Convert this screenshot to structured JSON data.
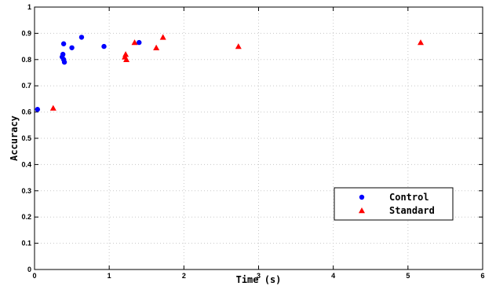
{
  "chart_data": {
    "type": "scatter",
    "title": "",
    "xlabel": "Time (s)",
    "ylabel": "Accuracy",
    "xlim": [
      0,
      6
    ],
    "ylim": [
      0,
      1
    ],
    "xticks": [
      "0",
      "1",
      "2",
      "3",
      "4",
      "5",
      "6"
    ],
    "yticks": [
      "0",
      "0.1",
      "0.2",
      "0.3",
      "0.4",
      "0.5",
      "0.6",
      "0.7",
      "0.8",
      "0.9",
      "1"
    ],
    "grid": true,
    "legend_position": "bottom-right",
    "series": [
      {
        "name": "Control",
        "marker": "circle",
        "color": "#0000ff",
        "points": [
          [
            0.04,
            0.61
          ],
          [
            0.37,
            0.81
          ],
          [
            0.38,
            0.82
          ],
          [
            0.39,
            0.86
          ],
          [
            0.39,
            0.8
          ],
          [
            0.4,
            0.79
          ],
          [
            0.5,
            0.845
          ],
          [
            0.63,
            0.885
          ],
          [
            0.93,
            0.85
          ],
          [
            1.4,
            0.865
          ]
        ]
      },
      {
        "name": "Standard",
        "marker": "triangle",
        "color": "#ff0000",
        "points": [
          [
            0.25,
            0.615
          ],
          [
            1.21,
            0.81
          ],
          [
            1.22,
            0.82
          ],
          [
            1.23,
            0.8
          ],
          [
            1.34,
            0.865
          ],
          [
            1.63,
            0.845
          ],
          [
            1.72,
            0.885
          ],
          [
            2.73,
            0.85
          ],
          [
            5.17,
            0.865
          ]
        ]
      }
    ]
  }
}
